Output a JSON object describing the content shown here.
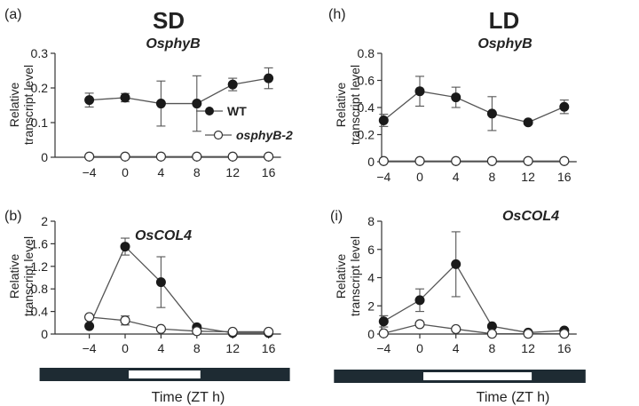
{
  "titles": {
    "left": "SD",
    "right": "LD"
  },
  "axis_label_line1": "Relative",
  "axis_label_line2": "transcript level",
  "time_label": "Time (ZT h)",
  "legend": {
    "wt": "WT",
    "mutant": "osphyB-2"
  },
  "colors": {
    "line": "#555555",
    "filled": "#1a1a1a",
    "open_fill": "#ffffff",
    "bar_dark": "#1e2b33",
    "bar_light": "#ffffff"
  },
  "light_bars": {
    "sd": {
      "dark_to": 0,
      "light_to": 8,
      "dark_end": 16
    },
    "ld": {
      "dark_to": 0,
      "light_to": 12,
      "dark_end": 16
    }
  },
  "chart_data": [
    {
      "type": "line",
      "panel": "(a)",
      "title": "OsphyB",
      "x": [
        -4,
        0,
        4,
        8,
        12,
        16
      ],
      "xticks": [
        "−4",
        "0",
        "4",
        "8",
        "12",
        "16"
      ],
      "ylim": [
        0,
        0.3
      ],
      "yticks": [
        0,
        0.1,
        0.2,
        0.3
      ],
      "ytick_labels": [
        "0",
        "0.1",
        "0.2",
        "0.3"
      ],
      "legend": true,
      "series": [
        {
          "name": "WT",
          "marker": "filled",
          "values": [
            0.165,
            0.172,
            0.155,
            0.155,
            0.21,
            0.228
          ],
          "err": [
            0.02,
            0.012,
            0.065,
            0.08,
            0.018,
            0.03
          ]
        },
        {
          "name": "osphyB-2",
          "marker": "open",
          "values": [
            0.002,
            0.002,
            0.002,
            0.002,
            0.002,
            0.002
          ],
          "err": [
            0,
            0,
            0,
            0,
            0,
            0
          ]
        }
      ]
    },
    {
      "type": "line",
      "panel": "(h)",
      "title": "OsphyB",
      "x": [
        -4,
        0,
        4,
        8,
        12,
        16
      ],
      "xticks": [
        "−4",
        "0",
        "4",
        "8",
        "12",
        "16"
      ],
      "ylim": [
        0,
        0.8
      ],
      "yticks": [
        0,
        0.2,
        0.4,
        0.6,
        0.8
      ],
      "ytick_labels": [
        "0",
        "0.2",
        "0.4",
        "0.6",
        "0.8"
      ],
      "legend": false,
      "series": [
        {
          "name": "WT",
          "marker": "filled",
          "values": [
            0.305,
            0.52,
            0.475,
            0.355,
            0.29,
            0.405
          ],
          "err": [
            0.045,
            0.11,
            0.075,
            0.125,
            0.015,
            0.05
          ]
        },
        {
          "name": "osphyB-2",
          "marker": "open",
          "values": [
            0.005,
            0.005,
            0.005,
            0.005,
            0.005,
            0.005
          ],
          "err": [
            0,
            0,
            0,
            0,
            0,
            0
          ]
        }
      ]
    },
    {
      "type": "line",
      "panel": "(b)",
      "title": "OsCOL4",
      "x": [
        -4,
        0,
        4,
        8,
        12,
        16
      ],
      "xticks": [
        "−4",
        "0",
        "4",
        "8",
        "12",
        "16"
      ],
      "ylim": [
        0,
        2
      ],
      "yticks": [
        0,
        0.4,
        0.8,
        1.2,
        1.6,
        2
      ],
      "ytick_labels": [
        "0",
        "0.4",
        "0.8",
        "1.2",
        "1.6",
        "2"
      ],
      "legend": false,
      "series": [
        {
          "name": "WT",
          "marker": "filled",
          "values": [
            0.14,
            1.55,
            0.92,
            0.12,
            0.02,
            0.02
          ],
          "err": [
            0.02,
            0.15,
            0.45,
            0.04,
            0.01,
            0.01
          ]
        },
        {
          "name": "osphyB-2",
          "marker": "open",
          "values": [
            0.3,
            0.24,
            0.09,
            0.05,
            0.04,
            0.04
          ],
          "err": [
            0.03,
            0.08,
            0.03,
            0.01,
            0.01,
            0.01
          ]
        }
      ]
    },
    {
      "type": "line",
      "panel": "(i)",
      "title": "OsCOL4",
      "x": [
        -4,
        0,
        4,
        8,
        12,
        16
      ],
      "xticks": [
        "−4",
        "0",
        "4",
        "8",
        "12",
        "16"
      ],
      "ylim": [
        0,
        8
      ],
      "yticks": [
        0,
        2,
        4,
        6,
        8
      ],
      "ytick_labels": [
        "0",
        "2",
        "4",
        "6",
        "8"
      ],
      "legend": false,
      "series": [
        {
          "name": "WT",
          "marker": "filled",
          "values": [
            0.9,
            2.4,
            4.95,
            0.55,
            0.1,
            0.25
          ],
          "err": [
            0.4,
            0.8,
            2.3,
            0.1,
            0.05,
            0.1
          ]
        },
        {
          "name": "osphyB-2",
          "marker": "open",
          "values": [
            0.05,
            0.7,
            0.35,
            0.02,
            0.02,
            0.02
          ],
          "err": [
            0.02,
            0.05,
            0.1,
            0.01,
            0.01,
            0.01
          ]
        }
      ]
    }
  ]
}
